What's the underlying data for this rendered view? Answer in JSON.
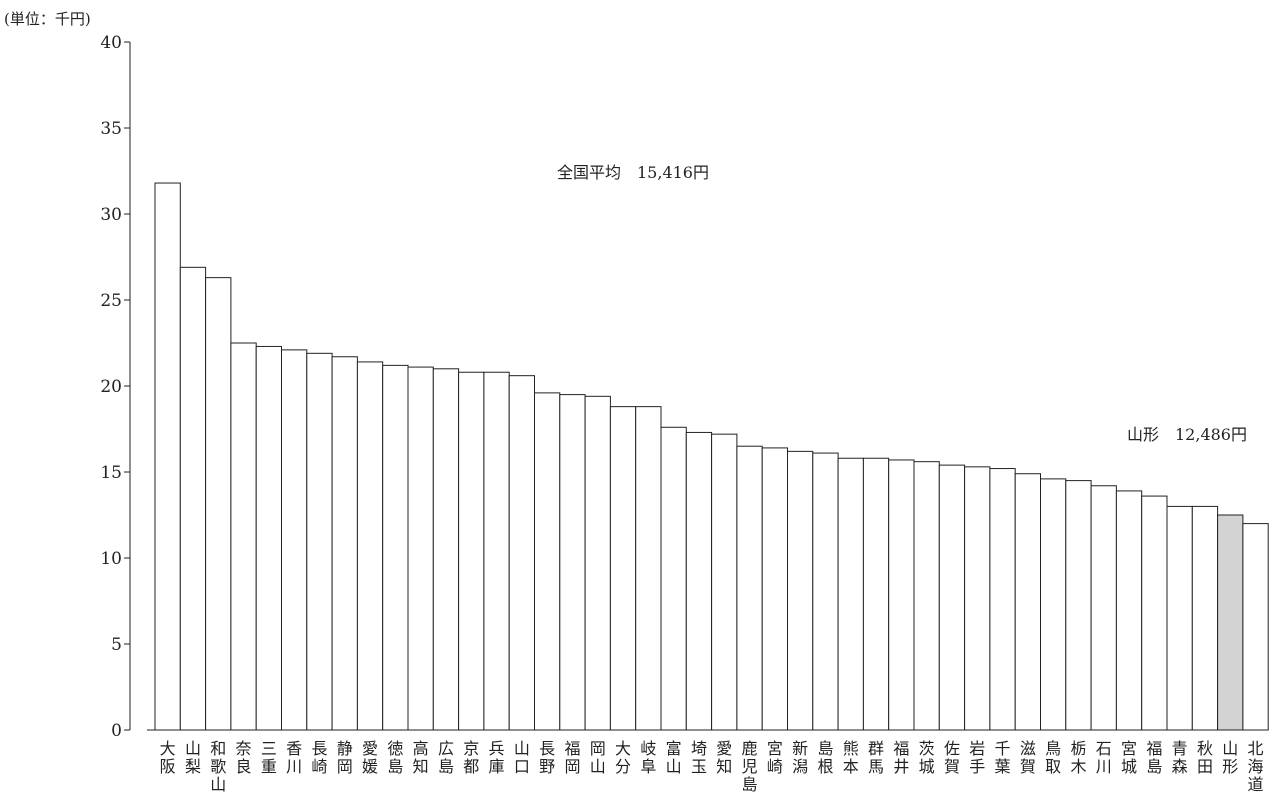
{
  "chart_data": {
    "type": "bar",
    "unit_label": "(単位：千円)",
    "ylim": [
      0,
      40
    ],
    "yticks": [
      0,
      5,
      10,
      15,
      20,
      25,
      30,
      35,
      40
    ],
    "grid": false,
    "legend": "none",
    "categories": [
      "大阪",
      "山梨",
      "和歌山",
      "奈良",
      "三重",
      "香川",
      "長崎",
      "静岡",
      "愛媛",
      "徳島",
      "高知",
      "広島",
      "京都",
      "兵庫",
      "山口",
      "長野",
      "福岡",
      "岡山",
      "大分",
      "岐阜",
      "富山",
      "埼玉",
      "愛知",
      "鹿児島",
      "宮崎",
      "新潟",
      "島根",
      "熊本",
      "群馬",
      "福井",
      "茨城",
      "佐賀",
      "岩手",
      "千葉",
      "滋賀",
      "鳥取",
      "栃木",
      "石川",
      "宮城",
      "福島",
      "青森",
      "秋田",
      "山形",
      "北海道"
    ],
    "values": [
      31.8,
      26.9,
      26.3,
      22.5,
      22.3,
      22.1,
      21.9,
      21.7,
      21.4,
      21.2,
      21.1,
      21.0,
      20.8,
      20.8,
      20.6,
      19.6,
      19.5,
      19.4,
      18.8,
      18.8,
      17.6,
      17.3,
      17.2,
      16.5,
      16.4,
      16.2,
      16.1,
      15.8,
      15.8,
      15.7,
      15.6,
      15.4,
      15.3,
      15.2,
      14.9,
      14.6,
      14.5,
      14.2,
      13.9,
      13.6,
      13.0,
      13.0,
      12.5,
      12.0
    ],
    "highlight": "山形",
    "colors": {
      "bar": "#ffffff",
      "highlight": "#d3d3d3",
      "stroke": "#222222"
    },
    "annotations": [
      {
        "text": "全国平均　15,416円"
      },
      {
        "text": "山形　12,486円"
      }
    ]
  }
}
